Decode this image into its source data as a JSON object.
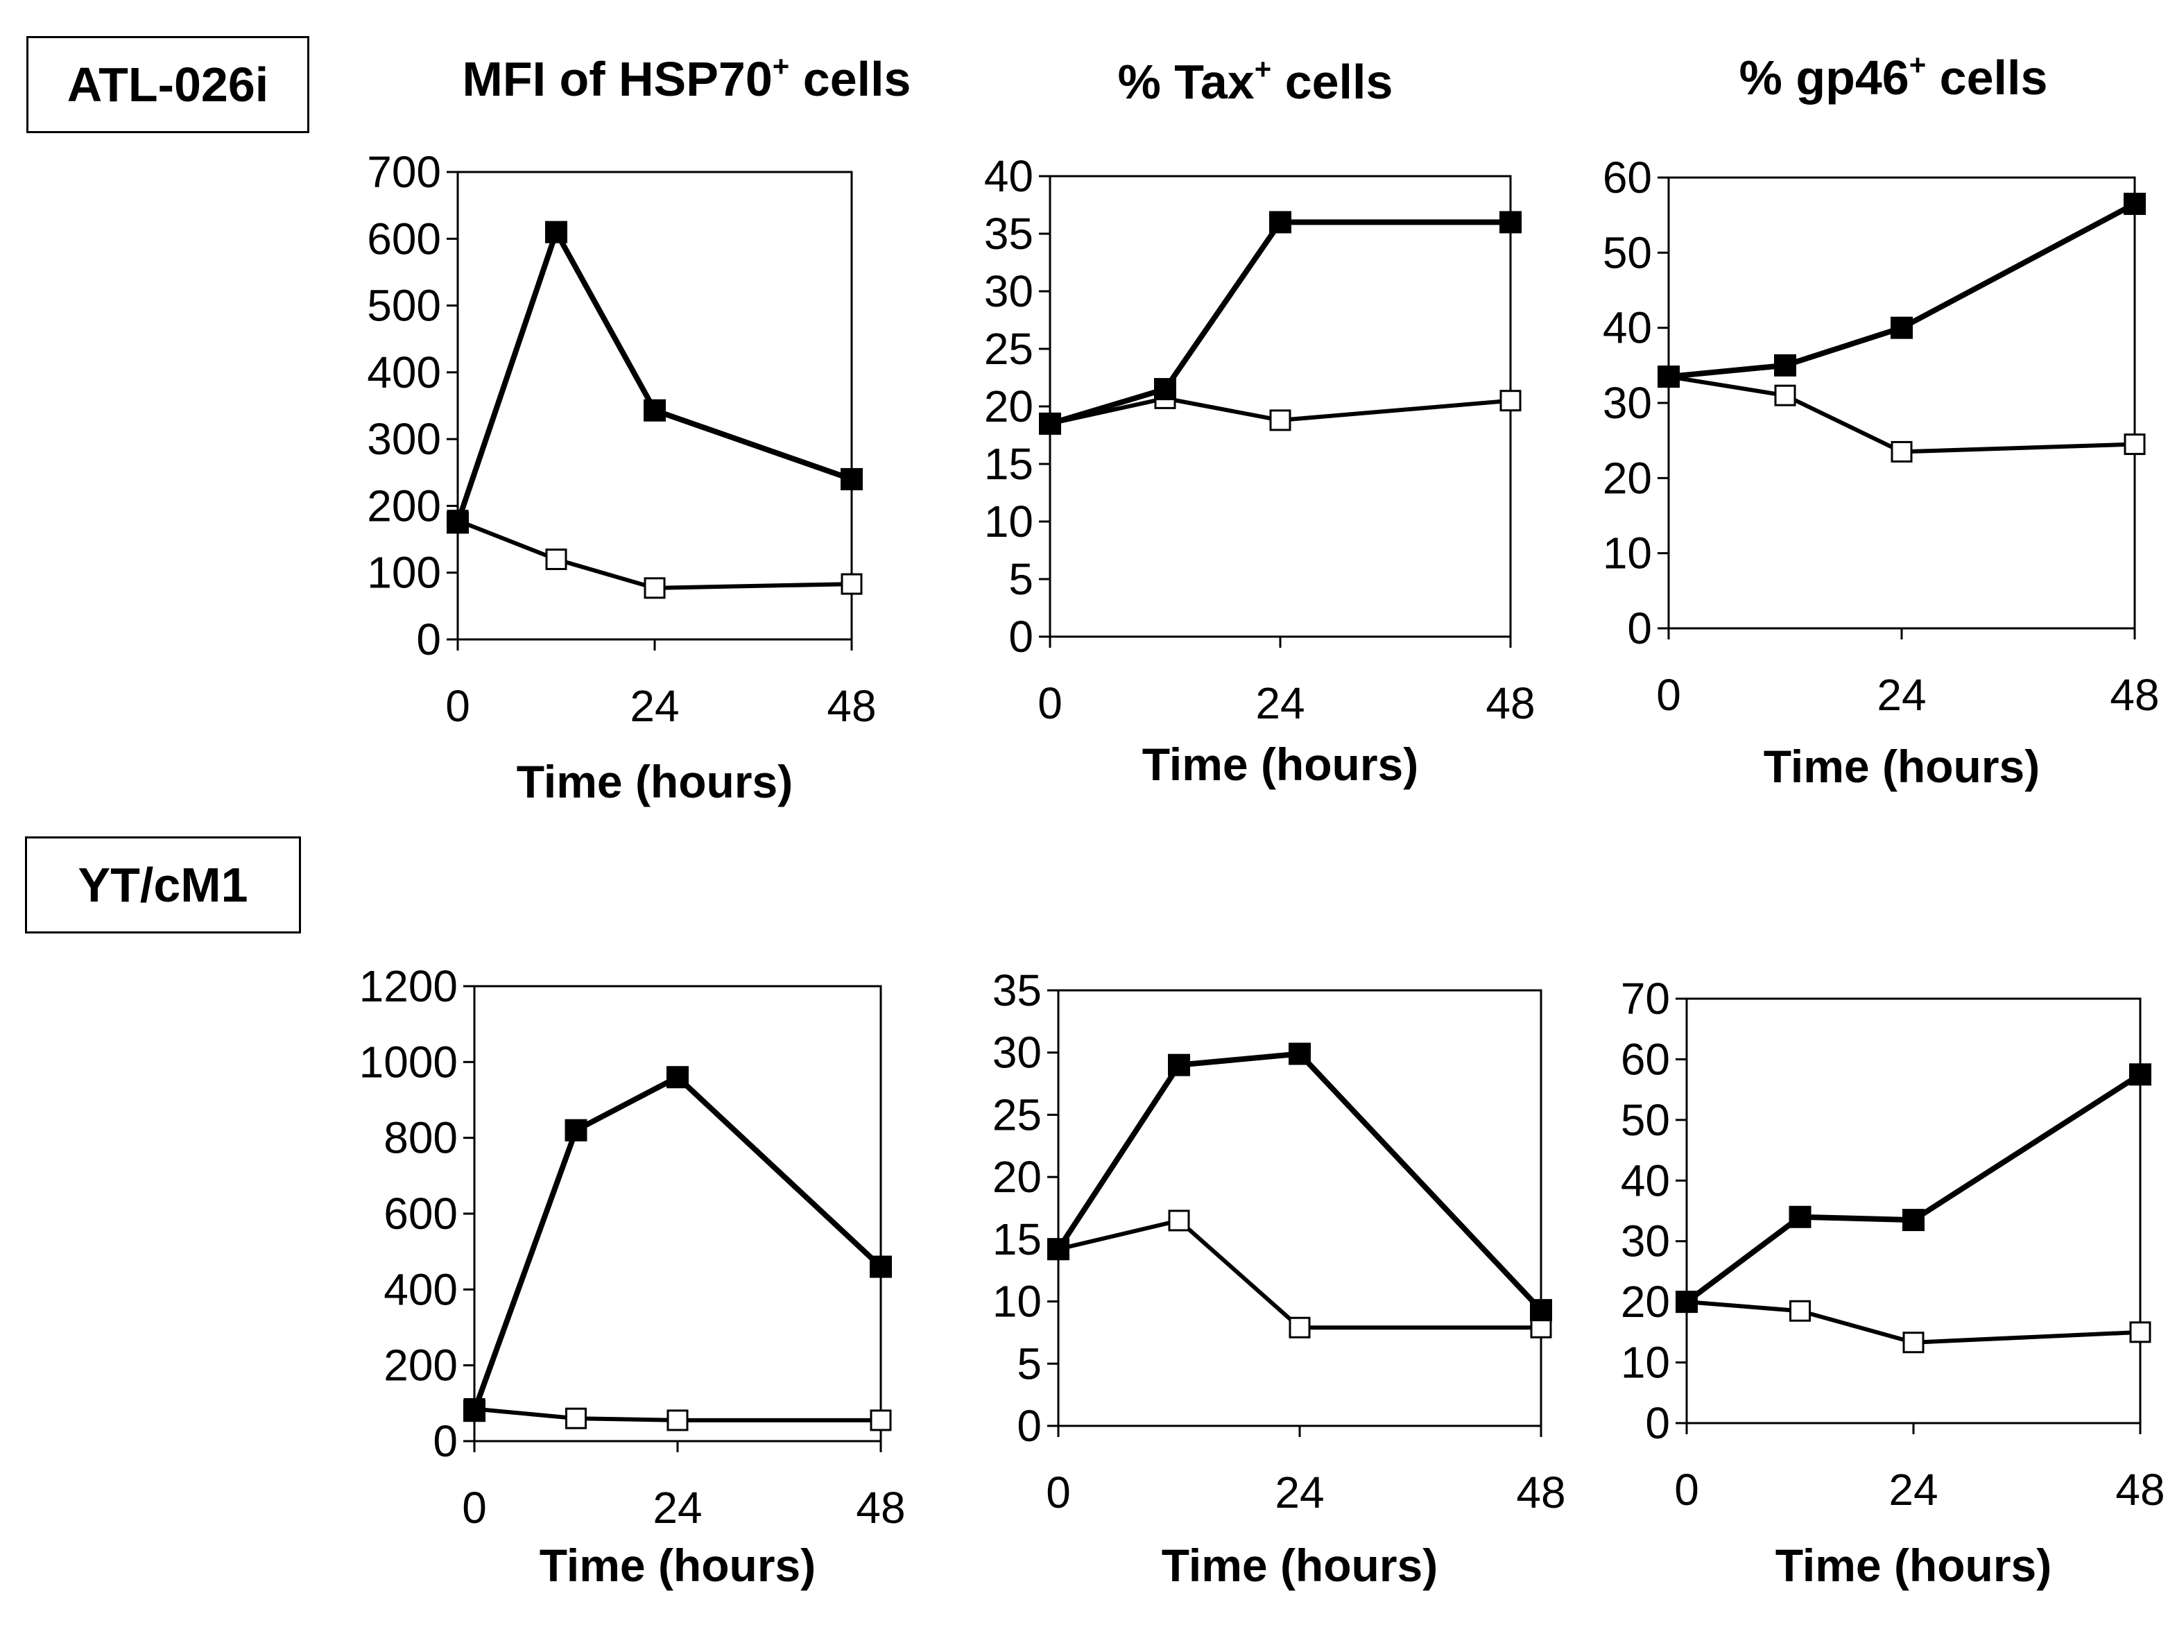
{
  "row_labels": [
    "ATL-026i",
    "YT/cM1"
  ],
  "column_titles": [
    {
      "prefix": "MFI of HSP70",
      "sup": "+",
      "suffix": " cells"
    },
    {
      "prefix": "% Tax",
      "sup": "+",
      "suffix": " cells"
    },
    {
      "prefix": "% gp46",
      "sup": "+",
      "suffix": " cells"
    }
  ],
  "chart_data": [
    {
      "id": "atl-hsp70",
      "type": "line",
      "title": "MFI of HSP70+ cells",
      "row": "ATL-026i",
      "xlabel": "Time (hours)",
      "xticks": [
        0,
        24,
        48
      ],
      "xlim": [
        0,
        48
      ],
      "ylim": [
        0,
        700
      ],
      "yticks": [
        0,
        100,
        200,
        300,
        400,
        500,
        600,
        700
      ],
      "series": [
        {
          "name": "filled",
          "marker": "filled-square",
          "x": [
            0,
            12,
            24,
            48
          ],
          "y": [
            175,
            610,
            343,
            240
          ]
        },
        {
          "name": "open",
          "marker": "open-square",
          "x": [
            0,
            12,
            24,
            48
          ],
          "y": [
            178,
            120,
            77,
            83
          ]
        }
      ]
    },
    {
      "id": "atl-tax",
      "type": "line",
      "title": "% Tax+ cells",
      "row": "ATL-026i",
      "xlabel": "Time (hours)",
      "xticks": [
        0,
        24,
        48
      ],
      "xlim": [
        0,
        48
      ],
      "ylim": [
        0,
        40
      ],
      "yticks": [
        0,
        5,
        10,
        15,
        20,
        25,
        30,
        35,
        40
      ],
      "series": [
        {
          "name": "filled",
          "marker": "filled-square",
          "x": [
            0,
            12,
            24,
            48
          ],
          "y": [
            18.5,
            21.5,
            36,
            36
          ]
        },
        {
          "name": "open",
          "marker": "open-square",
          "x": [
            0,
            12,
            24,
            48
          ],
          "y": [
            18.5,
            20.7,
            18.8,
            20.5
          ]
        }
      ]
    },
    {
      "id": "atl-gp46",
      "type": "line",
      "title": "% gp46+ cells",
      "row": "ATL-026i",
      "xlabel": "Time (hours)",
      "xticks": [
        0,
        24,
        48
      ],
      "xlim": [
        0,
        48
      ],
      "ylim": [
        0,
        60
      ],
      "yticks": [
        0,
        10,
        20,
        30,
        40,
        50,
        60
      ],
      "series": [
        {
          "name": "filled",
          "marker": "filled-square",
          "x": [
            0,
            12,
            24,
            48
          ],
          "y": [
            33.5,
            35,
            40,
            56.5
          ]
        },
        {
          "name": "open",
          "marker": "open-square",
          "x": [
            0,
            12,
            24,
            48
          ],
          "y": [
            33.5,
            31,
            23.5,
            24.5
          ]
        }
      ]
    },
    {
      "id": "yt-hsp70",
      "type": "line",
      "title": "MFI of HSP70+ cells",
      "row": "YT/cM1",
      "xlabel": "Time (hours)",
      "xticks": [
        0,
        24,
        48
      ],
      "xlim": [
        0,
        48
      ],
      "ylim": [
        0,
        1200
      ],
      "yticks": [
        0,
        200,
        400,
        600,
        800,
        1000,
        1200
      ],
      "series": [
        {
          "name": "filled",
          "marker": "filled-square",
          "x": [
            0,
            12,
            24,
            48
          ],
          "y": [
            80,
            820,
            960,
            460
          ]
        },
        {
          "name": "open",
          "marker": "open-square",
          "x": [
            0,
            12,
            24,
            48
          ],
          "y": [
            85,
            60,
            55,
            55
          ]
        }
      ]
    },
    {
      "id": "yt-tax",
      "type": "line",
      "title": "% Tax+ cells",
      "row": "YT/cM1",
      "xlabel": "Time (hours)",
      "xticks": [
        0,
        24,
        48
      ],
      "xlim": [
        0,
        48
      ],
      "ylim": [
        0,
        35
      ],
      "yticks": [
        0,
        5,
        10,
        15,
        20,
        25,
        30,
        35
      ],
      "series": [
        {
          "name": "filled",
          "marker": "filled-square",
          "x": [
            0,
            12,
            24,
            48
          ],
          "y": [
            14.2,
            29,
            29.9,
            9.3
          ]
        },
        {
          "name": "open",
          "marker": "open-square",
          "x": [
            0,
            12,
            24,
            48
          ],
          "y": [
            14.2,
            16.5,
            7.9,
            7.9
          ]
        }
      ]
    },
    {
      "id": "yt-gp46",
      "type": "line",
      "title": "% gp46+ cells",
      "row": "YT/cM1",
      "xlabel": "Time (hours)",
      "xticks": [
        0,
        24,
        48
      ],
      "xlim": [
        0,
        48
      ],
      "ylim": [
        0,
        70
      ],
      "yticks": [
        0,
        10,
        20,
        30,
        40,
        50,
        60,
        70
      ],
      "series": [
        {
          "name": "filled",
          "marker": "filled-square",
          "x": [
            0,
            12,
            24,
            48
          ],
          "y": [
            20,
            34,
            33.5,
            57.5
          ]
        },
        {
          "name": "open",
          "marker": "open-square",
          "x": [
            0,
            12,
            24,
            48
          ],
          "y": [
            20,
            18.5,
            13.3,
            15
          ]
        }
      ]
    }
  ]
}
